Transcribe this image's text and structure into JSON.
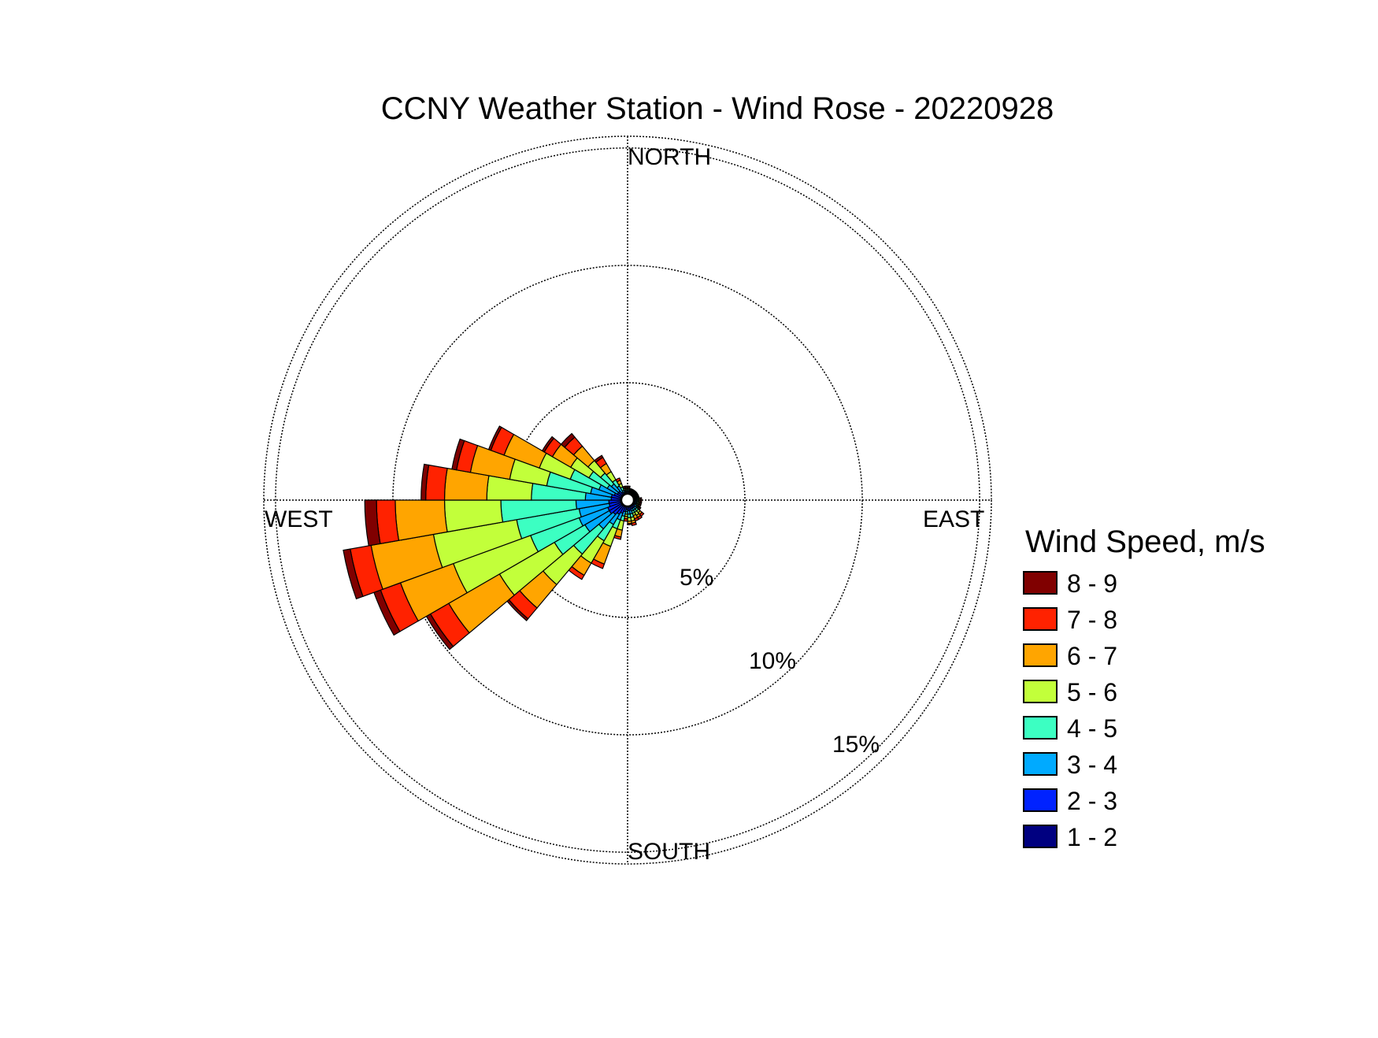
{
  "chart_data": {
    "type": "wind-rose",
    "title": "CCNY Weather Station - Wind Rose - 20220928",
    "directions": {
      "north": "NORTH",
      "south": "SOUTH",
      "east": "EAST",
      "west": "WEST"
    },
    "radial_ticks": [
      {
        "value": 5,
        "label": "5%"
      },
      {
        "value": 10,
        "label": "10%"
      },
      {
        "value": 15,
        "label": "15%"
      }
    ],
    "rmax": 15.5,
    "legend_title": "Wind Speed, m/s",
    "bins": [
      {
        "label": "1 - 2",
        "color": "#000080"
      },
      {
        "label": "2 - 3",
        "color": "#0022ff"
      },
      {
        "label": "3 - 4",
        "color": "#00aaff"
      },
      {
        "label": "4 - 5",
        "color": "#3cffc2"
      },
      {
        "label": "5 - 6",
        "color": "#c2ff3a"
      },
      {
        "label": "6 - 7",
        "color": "#ffa500"
      },
      {
        "label": "7 - 8",
        "color": "#ff2200"
      },
      {
        "label": "8 - 9",
        "color": "#800000"
      }
    ],
    "sector_width_deg": 10,
    "sectors": [
      {
        "dir": 85,
        "cum": [
          0.3,
          0.35,
          0.4,
          0.45,
          0.5,
          0.55,
          0.6,
          0.6
        ]
      },
      {
        "dir": 95,
        "cum": [
          0.3,
          0.35,
          0.4,
          0.45,
          0.5,
          0.55,
          0.6,
          0.6
        ]
      },
      {
        "dir": 105,
        "cum": [
          0.3,
          0.35,
          0.4,
          0.45,
          0.5,
          0.55,
          0.6,
          0.6
        ]
      },
      {
        "dir": 115,
        "cum": [
          0.3,
          0.35,
          0.4,
          0.45,
          0.5,
          0.55,
          0.6,
          0.6
        ]
      },
      {
        "dir": 125,
        "cum": [
          0.3,
          0.35,
          0.45,
          0.5,
          0.55,
          0.6,
          0.65,
          0.65
        ]
      },
      {
        "dir": 135,
        "cum": [
          0.3,
          0.4,
          0.5,
          0.6,
          0.7,
          0.8,
          0.9,
          0.9
        ]
      },
      {
        "dir": 145,
        "cum": [
          0.3,
          0.4,
          0.5,
          0.6,
          0.75,
          0.85,
          0.95,
          0.95
        ]
      },
      {
        "dir": 155,
        "cum": [
          0.3,
          0.4,
          0.5,
          0.6,
          0.7,
          0.85,
          0.95,
          0.95
        ]
      },
      {
        "dir": 165,
        "cum": [
          0.3,
          0.45,
          0.6,
          0.75,
          0.9,
          1.0,
          1.1,
          1.1
        ]
      },
      {
        "dir": 175,
        "cum": [
          0.3,
          0.45,
          0.6,
          0.75,
          0.9,
          1.0,
          1.05,
          1.05
        ]
      },
      {
        "dir": 185,
        "cum": [
          0.3,
          0.4,
          0.5,
          0.6,
          0.7,
          0.8,
          0.9,
          0.9
        ]
      },
      {
        "dir": 195,
        "cum": [
          0.3,
          0.5,
          0.7,
          0.9,
          1.3,
          1.6,
          1.7,
          1.7
        ]
      },
      {
        "dir": 205,
        "cum": [
          0.3,
          0.6,
          0.9,
          1.3,
          2.1,
          2.9,
          3.1,
          3.1
        ]
      },
      {
        "dir": 215,
        "cum": [
          0.3,
          0.7,
          1.2,
          2.0,
          3.1,
          3.7,
          3.9,
          3.9
        ]
      },
      {
        "dir": 225,
        "cum": [
          0.3,
          0.8,
          1.6,
          3.0,
          4.7,
          6.0,
          6.6,
          6.7
        ]
      },
      {
        "dir": 235,
        "cum": [
          0.3,
          0.9,
          2.1,
          3.6,
          6.3,
          8.8,
          9.7,
          9.9
        ]
      },
      {
        "dir": 245,
        "cum": [
          0.3,
          0.9,
          2.2,
          4.4,
          7.9,
          10.3,
          11.2,
          11.5
        ]
      },
      {
        "dir": 255,
        "cum": [
          0.3,
          0.8,
          2.1,
          4.8,
          8.4,
          11.1,
          12.0,
          12.3
        ]
      },
      {
        "dir": 265,
        "cum": [
          0.3,
          0.8,
          2.2,
          5.4,
          7.8,
          9.9,
          10.7,
          11.2
        ]
      },
      {
        "dir": 275,
        "cum": [
          0.3,
          0.7,
          1.8,
          4.1,
          6.0,
          7.8,
          8.6,
          8.8
        ]
      },
      {
        "dir": 285,
        "cum": [
          0.3,
          0.7,
          1.6,
          3.5,
          5.1,
          6.8,
          7.4,
          7.6
        ]
      },
      {
        "dir": 295,
        "cum": [
          0.3,
          0.6,
          1.3,
          2.6,
          4.0,
          5.6,
          6.2,
          6.3
        ]
      },
      {
        "dir": 305,
        "cum": [
          0.3,
          0.5,
          1.0,
          1.9,
          2.8,
          3.7,
          4.1,
          4.2
        ]
      },
      {
        "dir": 315,
        "cum": [
          0.3,
          0.5,
          0.9,
          1.5,
          2.2,
          3.0,
          3.5,
          3.7
        ]
      },
      {
        "dir": 325,
        "cum": [
          0.3,
          0.4,
          0.7,
          1.0,
          1.4,
          1.8,
          2.1,
          2.2
        ]
      },
      {
        "dir": 335,
        "cum": [
          0.3,
          0.35,
          0.45,
          0.6,
          0.75,
          0.9,
          1.0,
          1.0
        ]
      },
      {
        "dir": 345,
        "cum": [
          0.3,
          0.35,
          0.4,
          0.45,
          0.5,
          0.55,
          0.6,
          0.6
        ]
      },
      {
        "dir": 355,
        "cum": [
          0.3,
          0.35,
          0.4,
          0.45,
          0.5,
          0.55,
          0.6,
          0.6
        ]
      },
      {
        "dir": 5,
        "cum": [
          0.3,
          0.35,
          0.4,
          0.45,
          0.5,
          0.55,
          0.6,
          0.6
        ]
      },
      {
        "dir": 15,
        "cum": [
          0.3,
          0.33,
          0.36,
          0.4,
          0.44,
          0.48,
          0.5,
          0.5
        ]
      },
      {
        "dir": 25,
        "cum": [
          0.3,
          0.33,
          0.36,
          0.4,
          0.44,
          0.48,
          0.5,
          0.5
        ]
      },
      {
        "dir": 35,
        "cum": [
          0.3,
          0.33,
          0.36,
          0.4,
          0.44,
          0.48,
          0.5,
          0.5
        ]
      },
      {
        "dir": 45,
        "cum": [
          0.3,
          0.33,
          0.36,
          0.4,
          0.44,
          0.48,
          0.5,
          0.5
        ]
      },
      {
        "dir": 55,
        "cum": [
          0.3,
          0.33,
          0.36,
          0.4,
          0.44,
          0.48,
          0.5,
          0.5
        ]
      },
      {
        "dir": 65,
        "cum": [
          0.3,
          0.33,
          0.36,
          0.4,
          0.44,
          0.48,
          0.5,
          0.5
        ]
      },
      {
        "dir": 75,
        "cum": [
          0.3,
          0.33,
          0.36,
          0.4,
          0.44,
          0.48,
          0.5,
          0.5
        ]
      }
    ]
  }
}
